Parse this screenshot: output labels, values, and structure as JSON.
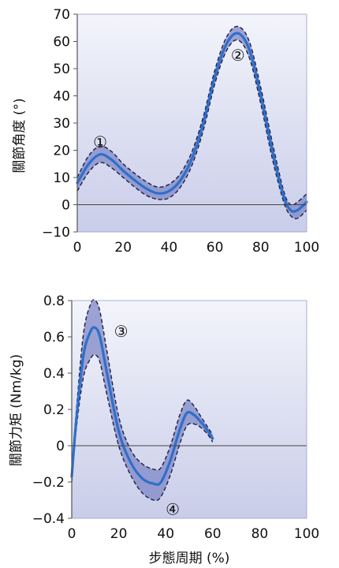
{
  "chart_data": [
    {
      "type": "line",
      "ylabel": "關節角度 (°)",
      "xlabel": "",
      "xlim": [
        0,
        100
      ],
      "ylim": [
        -10,
        70
      ],
      "xticks": [
        "0",
        "20",
        "40",
        "60",
        "80",
        "100"
      ],
      "yticks": [
        "−10",
        "0",
        "10",
        "20",
        "30",
        "40",
        "50",
        "60",
        "70"
      ],
      "grid": false,
      "series": [
        {
          "role": "mean",
          "x": [
            0,
            5,
            10,
            15,
            20,
            25,
            30,
            35,
            40,
            45,
            50,
            55,
            60,
            65,
            70,
            75,
            80,
            85,
            90,
            93,
            96,
            100
          ],
          "y": [
            8,
            15,
            18.5,
            16.5,
            12.5,
            9,
            6,
            4.2,
            5,
            9,
            17,
            30,
            47,
            59,
            63,
            57,
            40,
            20,
            3,
            -2,
            -2,
            1
          ]
        },
        {
          "role": "upper",
          "x": [
            0,
            5,
            10,
            15,
            20,
            25,
            30,
            35,
            40,
            45,
            50,
            55,
            60,
            65,
            70,
            75,
            80,
            85,
            90,
            93,
            96,
            100
          ],
          "y": [
            10,
            18,
            21.5,
            19.5,
            15,
            11.5,
            8.5,
            6.5,
            7.5,
            11.5,
            19.5,
            32.5,
            49.5,
            61.5,
            65.5,
            60,
            43,
            23,
            5,
            0,
            1,
            4
          ]
        },
        {
          "role": "lower",
          "x": [
            0,
            5,
            10,
            15,
            20,
            25,
            30,
            35,
            40,
            45,
            50,
            55,
            60,
            65,
            70,
            75,
            80,
            85,
            90,
            93,
            96,
            100
          ],
          "y": [
            5,
            12,
            15.5,
            13.5,
            10,
            6.5,
            3.5,
            2,
            2.5,
            6.5,
            14.5,
            27.5,
            44.5,
            56.5,
            60.5,
            54,
            37,
            17,
            1,
            -4,
            -5,
            -2
          ]
        }
      ],
      "annotations": [
        {
          "text": "①",
          "x": 10,
          "y": 23
        },
        {
          "text": "②",
          "x": 70,
          "y": 55
        }
      ]
    },
    {
      "type": "line",
      "ylabel": "關節力矩 (Nm/kg)",
      "xlabel": "步態周期 (%)",
      "xlim": [
        0,
        100
      ],
      "ylim": [
        -0.4,
        0.8
      ],
      "xticks": [
        "0",
        "20",
        "40",
        "60",
        "80",
        "100"
      ],
      "yticks": [
        "−0.4",
        "−0.2",
        "0",
        "0.2",
        "0.4",
        "0.6",
        "0.8"
      ],
      "grid": false,
      "series": [
        {
          "role": "mean",
          "x": [
            0,
            2,
            5,
            8,
            10,
            12,
            15,
            20,
            25,
            30,
            35,
            38,
            42,
            46,
            49,
            52,
            55,
            58,
            60
          ],
          "y": [
            -0.17,
            0.15,
            0.5,
            0.63,
            0.65,
            0.6,
            0.4,
            0.08,
            -0.09,
            -0.18,
            -0.21,
            -0.2,
            -0.08,
            0.09,
            0.18,
            0.17,
            0.13,
            0.08,
            0.04
          ]
        },
        {
          "role": "upper",
          "x": [
            0,
            2,
            5,
            8,
            10,
            12,
            15,
            20,
            25,
            30,
            35,
            38,
            42,
            46,
            49,
            52,
            55,
            58,
            60
          ],
          "y": [
            -0.14,
            0.2,
            0.62,
            0.78,
            0.8,
            0.74,
            0.52,
            0.16,
            -0.02,
            -0.1,
            -0.13,
            -0.12,
            0.0,
            0.17,
            0.25,
            0.22,
            0.16,
            0.1,
            0.06
          ]
        },
        {
          "role": "lower",
          "x": [
            0,
            2,
            5,
            8,
            10,
            12,
            15,
            20,
            25,
            30,
            35,
            38,
            42,
            46,
            49,
            52,
            55,
            58,
            60
          ],
          "y": [
            -0.2,
            0.1,
            0.38,
            0.48,
            0.5,
            0.46,
            0.28,
            0.0,
            -0.16,
            -0.26,
            -0.3,
            -0.28,
            -0.16,
            0.01,
            0.11,
            0.12,
            0.1,
            0.06,
            0.02
          ]
        }
      ],
      "annotations": [
        {
          "text": "③",
          "x": 21,
          "y": 0.63
        },
        {
          "text": "④",
          "x": 43,
          "y": -0.35
        }
      ]
    }
  ],
  "colors": {
    "background": "#eef0fa",
    "band": "#7f87c6",
    "mean": "#2f6fc9",
    "envelope": "#1c1f44",
    "axis": "#555555"
  }
}
